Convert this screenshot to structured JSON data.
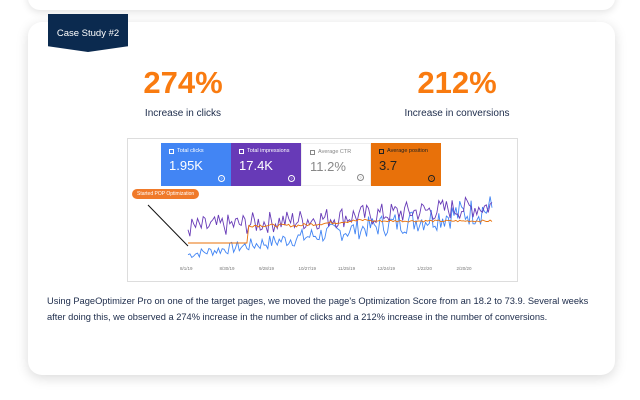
{
  "badge": "Case Study #2",
  "stats": [
    {
      "value": "274%",
      "label": "Increase in clicks"
    },
    {
      "value": "212%",
      "label": "Increase in conversions"
    }
  ],
  "screenshot": {
    "metrics": [
      {
        "label": "Total clicks",
        "value": "1.95K",
        "bg": "#4285f4",
        "checked": true
      },
      {
        "label": "Total impressions",
        "value": "17.4K",
        "bg": "#673ab7",
        "checked": true
      },
      {
        "label": "Average CTR",
        "value": "11.2%",
        "bg": "#ffffff",
        "checked": false
      },
      {
        "label": "Average position",
        "value": "3.7",
        "bg": "#e8710a",
        "checked": true
      }
    ],
    "annotation": "Started POP Optimization",
    "x_labels": [
      "8/1/19",
      "8/30/19",
      "9/28/19",
      "10/27/19",
      "11/25/19",
      "12/24/19",
      "1/22/20",
      "2/20/20"
    ],
    "series_colors": {
      "clicks": "#4285f4",
      "impressions": "#673ab7",
      "position": "#e8710a"
    }
  },
  "description": "Using PageOptimizer Pro on one of the target pages, we moved the page's Optimization Score from an 18.2 to 73.9. Several weeks after doing this, we observed a 274% increase in the number of clicks and a 212% increase in the number of conversions."
}
